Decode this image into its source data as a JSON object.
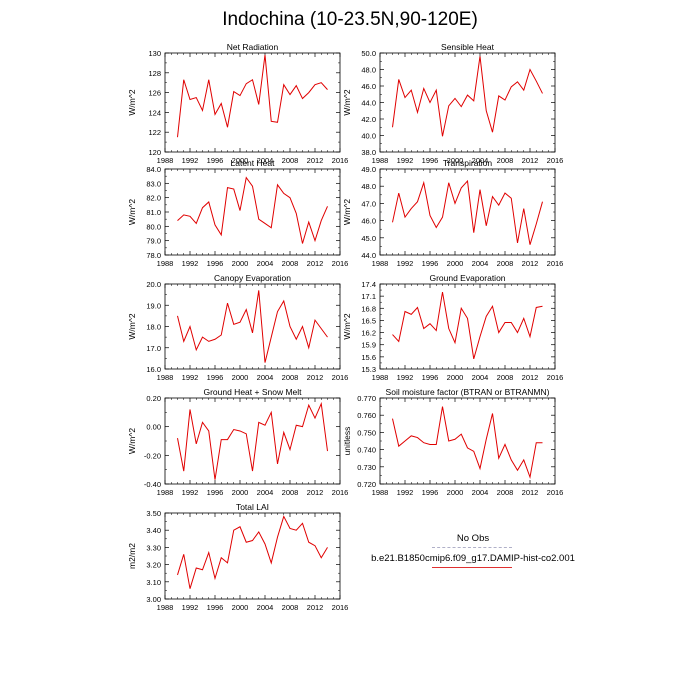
{
  "title": "Indochina (10-23.5N,90-120E)",
  "legend": {
    "obs_label": "No Obs",
    "obs_color": "#b0b0c8",
    "model_label": "b.e21.B1850cmip6.f09_g17.DAMIP-hist-co2.001",
    "model_color": "#e00000"
  },
  "chart_data": [
    {
      "type": "line",
      "title": "Net Radiation",
      "ylabel": "W/m^2",
      "xlim": [
        1988,
        2016
      ],
      "ylim": [
        120,
        130
      ],
      "xticks": [
        1988,
        1992,
        1996,
        2000,
        2004,
        2008,
        2012,
        2016
      ],
      "yticks": [
        120,
        122,
        124,
        126,
        128,
        130
      ],
      "ytick_labels": [
        "120",
        "122",
        "124",
        "126",
        "128",
        "130"
      ],
      "x": [
        1990,
        1991,
        1992,
        1993,
        1994,
        1995,
        1996,
        1997,
        1998,
        1999,
        2000,
        2001,
        2002,
        2003,
        2004,
        2005,
        2006,
        2007,
        2008,
        2009,
        2010,
        2011,
        2012,
        2013,
        2014
      ],
      "series": [
        {
          "values": [
            121.5,
            127.3,
            125.3,
            125.5,
            124.2,
            127.3,
            123.8,
            124.9,
            122.5,
            126.1,
            125.7,
            126.9,
            127.3,
            124.8,
            129.8,
            123.1,
            123.0,
            126.8,
            125.8,
            126.7,
            125.4,
            126.0,
            126.8,
            127.0,
            126.3
          ]
        }
      ]
    },
    {
      "type": "line",
      "title": "Sensible Heat",
      "ylabel": "W/m^2",
      "xlim": [
        1988,
        2016
      ],
      "ylim": [
        38,
        50
      ],
      "xticks": [
        1988,
        1992,
        1996,
        2000,
        2004,
        2008,
        2012,
        2016
      ],
      "yticks": [
        38,
        40,
        42,
        44,
        46,
        48,
        50
      ],
      "ytick_labels": [
        "38.0",
        "40.0",
        "42.0",
        "44.0",
        "46.0",
        "48.0",
        "50.0"
      ],
      "x": [
        1990,
        1991,
        1992,
        1993,
        1994,
        1995,
        1996,
        1997,
        1998,
        1999,
        2000,
        2001,
        2002,
        2003,
        2004,
        2005,
        2006,
        2007,
        2008,
        2009,
        2010,
        2011,
        2012,
        2013,
        2014
      ],
      "series": [
        {
          "values": [
            41.0,
            46.8,
            44.6,
            45.5,
            42.8,
            45.7,
            44.0,
            45.5,
            39.9,
            43.6,
            44.5,
            43.5,
            44.9,
            44.2,
            49.6,
            43.0,
            40.4,
            44.8,
            44.3,
            45.9,
            46.5,
            45.5,
            48.0,
            46.6,
            45.1
          ]
        }
      ]
    },
    {
      "type": "line",
      "title": "Latent Heat",
      "ylabel": "W/m^2",
      "xlim": [
        1988,
        2016
      ],
      "ylim": [
        78,
        84
      ],
      "xticks": [
        1988,
        1992,
        1996,
        2000,
        2004,
        2008,
        2012,
        2016
      ],
      "yticks": [
        78,
        79,
        80,
        81,
        82,
        83,
        84
      ],
      "ytick_labels": [
        "78.0",
        "79.0",
        "80.0",
        "81.0",
        "82.0",
        "83.0",
        "84.0"
      ],
      "x": [
        1990,
        1991,
        1992,
        1993,
        1994,
        1995,
        1996,
        1997,
        1998,
        1999,
        2000,
        2001,
        2002,
        2003,
        2004,
        2005,
        2006,
        2007,
        2008,
        2009,
        2010,
        2011,
        2012,
        2013,
        2014
      ],
      "series": [
        {
          "values": [
            80.4,
            80.8,
            80.7,
            80.2,
            81.3,
            81.7,
            80.1,
            79.4,
            82.7,
            82.6,
            81.1,
            83.4,
            82.8,
            80.5,
            80.2,
            79.9,
            82.9,
            82.3,
            82.0,
            80.9,
            78.8,
            80.3,
            79.0,
            80.4,
            81.4
          ]
        }
      ]
    },
    {
      "type": "line",
      "title": "Transpiration",
      "ylabel": "W/m^2",
      "xlim": [
        1988,
        2016
      ],
      "ylim": [
        44,
        49
      ],
      "xticks": [
        1988,
        1992,
        1996,
        2000,
        2004,
        2008,
        2012,
        2016
      ],
      "yticks": [
        44,
        45,
        46,
        47,
        48,
        49
      ],
      "ytick_labels": [
        "44.0",
        "45.0",
        "46.0",
        "47.0",
        "48.0",
        "49.0"
      ],
      "x": [
        1990,
        1991,
        1992,
        1993,
        1994,
        1995,
        1996,
        1997,
        1998,
        1999,
        2000,
        2001,
        2002,
        2003,
        2004,
        2005,
        2006,
        2007,
        2008,
        2009,
        2010,
        2011,
        2012,
        2013,
        2014
      ],
      "series": [
        {
          "values": [
            45.9,
            47.6,
            46.2,
            46.7,
            47.1,
            48.2,
            46.3,
            45.6,
            46.2,
            48.2,
            47.0,
            47.9,
            48.3,
            45.3,
            47.8,
            45.7,
            47.4,
            46.9,
            47.6,
            47.3,
            44.7,
            46.7,
            44.6,
            45.8,
            47.1
          ]
        }
      ]
    },
    {
      "type": "line",
      "title": "Canopy Evaporation",
      "ylabel": "W/m^2",
      "xlim": [
        1988,
        2016
      ],
      "ylim": [
        16,
        20
      ],
      "xticks": [
        1988,
        1992,
        1996,
        2000,
        2004,
        2008,
        2012,
        2016
      ],
      "yticks": [
        16,
        17,
        18,
        19,
        20
      ],
      "ytick_labels": [
        "16.0",
        "17.0",
        "18.0",
        "19.0",
        "20.0"
      ],
      "x": [
        1990,
        1991,
        1992,
        1993,
        1994,
        1995,
        1996,
        1997,
        1998,
        1999,
        2000,
        2001,
        2002,
        2003,
        2004,
        2005,
        2006,
        2007,
        2008,
        2009,
        2010,
        2011,
        2012,
        2013,
        2014
      ],
      "series": [
        {
          "values": [
            18.5,
            17.3,
            18.0,
            16.9,
            17.5,
            17.3,
            17.4,
            17.6,
            19.1,
            18.1,
            18.2,
            18.8,
            17.7,
            19.7,
            16.3,
            17.5,
            18.7,
            19.2,
            18.0,
            17.4,
            18.0,
            17.0,
            18.3,
            17.9,
            17.5
          ]
        }
      ]
    },
    {
      "type": "line",
      "title": "Ground Evaporation",
      "ylabel": "W/m^2",
      "xlim": [
        1988,
        2016
      ],
      "ylim": [
        15.3,
        17.4
      ],
      "xticks": [
        1988,
        1992,
        1996,
        2000,
        2004,
        2008,
        2012,
        2016
      ],
      "yticks": [
        15.3,
        15.6,
        15.9,
        16.2,
        16.5,
        16.8,
        17.1,
        17.4
      ],
      "ytick_labels": [
        "15.3",
        "15.6",
        "15.9",
        "16.2",
        "16.5",
        "16.8",
        "17.1",
        "17.4"
      ],
      "x": [
        1990,
        1991,
        1992,
        1993,
        1994,
        1995,
        1996,
        1997,
        1998,
        1999,
        2000,
        2001,
        2002,
        2003,
        2004,
        2005,
        2006,
        2007,
        2008,
        2009,
        2010,
        2011,
        2012,
        2013,
        2014
      ],
      "series": [
        {
          "values": [
            16.15,
            15.98,
            16.72,
            16.65,
            16.82,
            16.3,
            16.42,
            16.25,
            17.2,
            16.3,
            15.95,
            16.8,
            16.55,
            15.55,
            16.1,
            16.6,
            16.85,
            16.2,
            16.45,
            16.45,
            16.2,
            16.55,
            16.1,
            16.82,
            16.85
          ]
        }
      ]
    },
    {
      "type": "line",
      "title": "Ground Heat + Snow Melt",
      "ylabel": "W/m^2",
      "xlim": [
        1988,
        2016
      ],
      "ylim": [
        -0.4,
        0.2
      ],
      "xticks": [
        1988,
        1992,
        1996,
        2000,
        2004,
        2008,
        2012,
        2016
      ],
      "yticks": [
        -0.4,
        -0.2,
        0.0,
        0.2
      ],
      "ytick_labels": [
        "-0.40",
        "-0.20",
        "0.00",
        "0.20"
      ],
      "x": [
        1990,
        1991,
        1992,
        1993,
        1994,
        1995,
        1996,
        1997,
        1998,
        1999,
        2000,
        2001,
        2002,
        2003,
        2004,
        2005,
        2006,
        2007,
        2008,
        2009,
        2010,
        2011,
        2012,
        2013,
        2014
      ],
      "series": [
        {
          "values": [
            -0.08,
            -0.31,
            0.12,
            -0.12,
            0.03,
            -0.03,
            -0.37,
            -0.09,
            -0.09,
            -0.02,
            -0.03,
            -0.05,
            -0.31,
            0.03,
            0.01,
            0.1,
            -0.26,
            -0.04,
            -0.16,
            0.01,
            0.0,
            0.15,
            0.06,
            0.16,
            -0.17
          ]
        }
      ]
    },
    {
      "type": "line",
      "title": "Soil moisture factor (BTRAN or BTRANMN)",
      "ylabel": "unitless",
      "xlim": [
        1988,
        2016
      ],
      "ylim": [
        0.72,
        0.77
      ],
      "xticks": [
        1988,
        1992,
        1996,
        2000,
        2004,
        2008,
        2012,
        2016
      ],
      "yticks": [
        0.72,
        0.73,
        0.74,
        0.75,
        0.76,
        0.77
      ],
      "ytick_labels": [
        "0.720",
        "0.730",
        "0.740",
        "0.750",
        "0.760",
        "0.770"
      ],
      "x": [
        1990,
        1991,
        1992,
        1993,
        1994,
        1995,
        1996,
        1997,
        1998,
        1999,
        2000,
        2001,
        2002,
        2003,
        2004,
        2005,
        2006,
        2007,
        2008,
        2009,
        2010,
        2011,
        2012,
        2013,
        2014
      ],
      "series": [
        {
          "values": [
            0.758,
            0.742,
            0.745,
            0.748,
            0.747,
            0.744,
            0.743,
            0.743,
            0.765,
            0.745,
            0.746,
            0.749,
            0.741,
            0.739,
            0.729,
            0.746,
            0.761,
            0.735,
            0.743,
            0.734,
            0.728,
            0.734,
            0.724,
            0.744,
            0.744
          ]
        }
      ]
    },
    {
      "type": "line",
      "title": "Total LAI",
      "ylabel": "m2/m2",
      "xlim": [
        1988,
        2016
      ],
      "ylim": [
        3.0,
        3.5
      ],
      "xticks": [
        1988,
        1992,
        1996,
        2000,
        2004,
        2008,
        2012,
        2016
      ],
      "yticks": [
        3.0,
        3.1,
        3.2,
        3.3,
        3.4,
        3.5
      ],
      "ytick_labels": [
        "3.00",
        "3.10",
        "3.20",
        "3.30",
        "3.40",
        "3.50"
      ],
      "x": [
        1990,
        1991,
        1992,
        1993,
        1994,
        1995,
        1996,
        1997,
        1998,
        1999,
        2000,
        2001,
        2002,
        2003,
        2004,
        2005,
        2006,
        2007,
        2008,
        2009,
        2010,
        2011,
        2012,
        2013,
        2014
      ],
      "series": [
        {
          "values": [
            3.14,
            3.26,
            3.06,
            3.18,
            3.17,
            3.27,
            3.12,
            3.24,
            3.21,
            3.4,
            3.42,
            3.33,
            3.34,
            3.39,
            3.32,
            3.21,
            3.36,
            3.48,
            3.41,
            3.4,
            3.44,
            3.33,
            3.31,
            3.24,
            3.3
          ]
        }
      ]
    }
  ]
}
